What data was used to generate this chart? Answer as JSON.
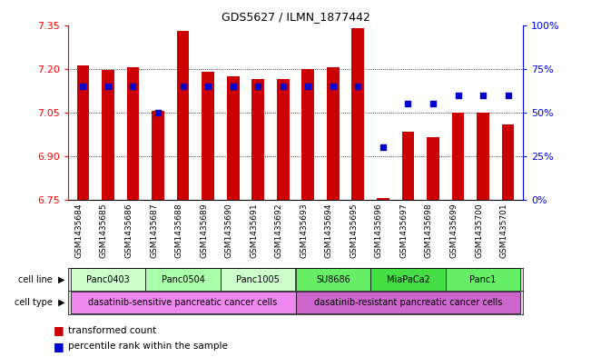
{
  "title": "GDS5627 / ILMN_1877442",
  "samples": [
    "GSM1435684",
    "GSM1435685",
    "GSM1435686",
    "GSM1435687",
    "GSM1435688",
    "GSM1435689",
    "GSM1435690",
    "GSM1435691",
    "GSM1435692",
    "GSM1435693",
    "GSM1435694",
    "GSM1435695",
    "GSM1435696",
    "GSM1435697",
    "GSM1435698",
    "GSM1435699",
    "GSM1435700",
    "GSM1435701"
  ],
  "transformed_count": [
    7.21,
    7.195,
    7.205,
    7.055,
    7.33,
    7.19,
    7.175,
    7.165,
    7.165,
    7.2,
    7.205,
    7.34,
    6.755,
    6.985,
    6.965,
    7.05,
    7.05,
    7.01
  ],
  "percentile": [
    65,
    65,
    65,
    50,
    65,
    65,
    65,
    65,
    65,
    65,
    65,
    65,
    30,
    55,
    55,
    60,
    60,
    60
  ],
  "ylim_left": [
    6.75,
    7.35
  ],
  "ylim_right": [
    0,
    100
  ],
  "yticks_left": [
    6.75,
    6.9,
    7.05,
    7.2,
    7.35
  ],
  "yticks_right": [
    0,
    25,
    50,
    75,
    100
  ],
  "ytick_labels_right": [
    "0%",
    "25%",
    "50%",
    "75%",
    "100%"
  ],
  "bar_color": "#cc0000",
  "dot_color": "#0000cc",
  "background_color": "#ffffff",
  "grid_color": "#000000",
  "cell_lines": [
    {
      "label": "Panc0403",
      "start": 0,
      "end": 3,
      "color": "#ccffcc"
    },
    {
      "label": "Panc0504",
      "start": 3,
      "end": 6,
      "color": "#aaffaa"
    },
    {
      "label": "Panc1005",
      "start": 6,
      "end": 9,
      "color": "#ccffcc"
    },
    {
      "label": "SU8686",
      "start": 9,
      "end": 12,
      "color": "#66ee66"
    },
    {
      "label": "MiaPaCa2",
      "start": 12,
      "end": 15,
      "color": "#44dd44"
    },
    {
      "label": "Panc1",
      "start": 15,
      "end": 18,
      "color": "#66ee66"
    }
  ],
  "cell_types": [
    {
      "label": "dasatinib-sensitive pancreatic cancer cells",
      "start": 0,
      "end": 9,
      "color": "#ee88ee"
    },
    {
      "label": "dasatinib-resistant pancreatic cancer cells",
      "start": 9,
      "end": 18,
      "color": "#cc66cc"
    }
  ]
}
